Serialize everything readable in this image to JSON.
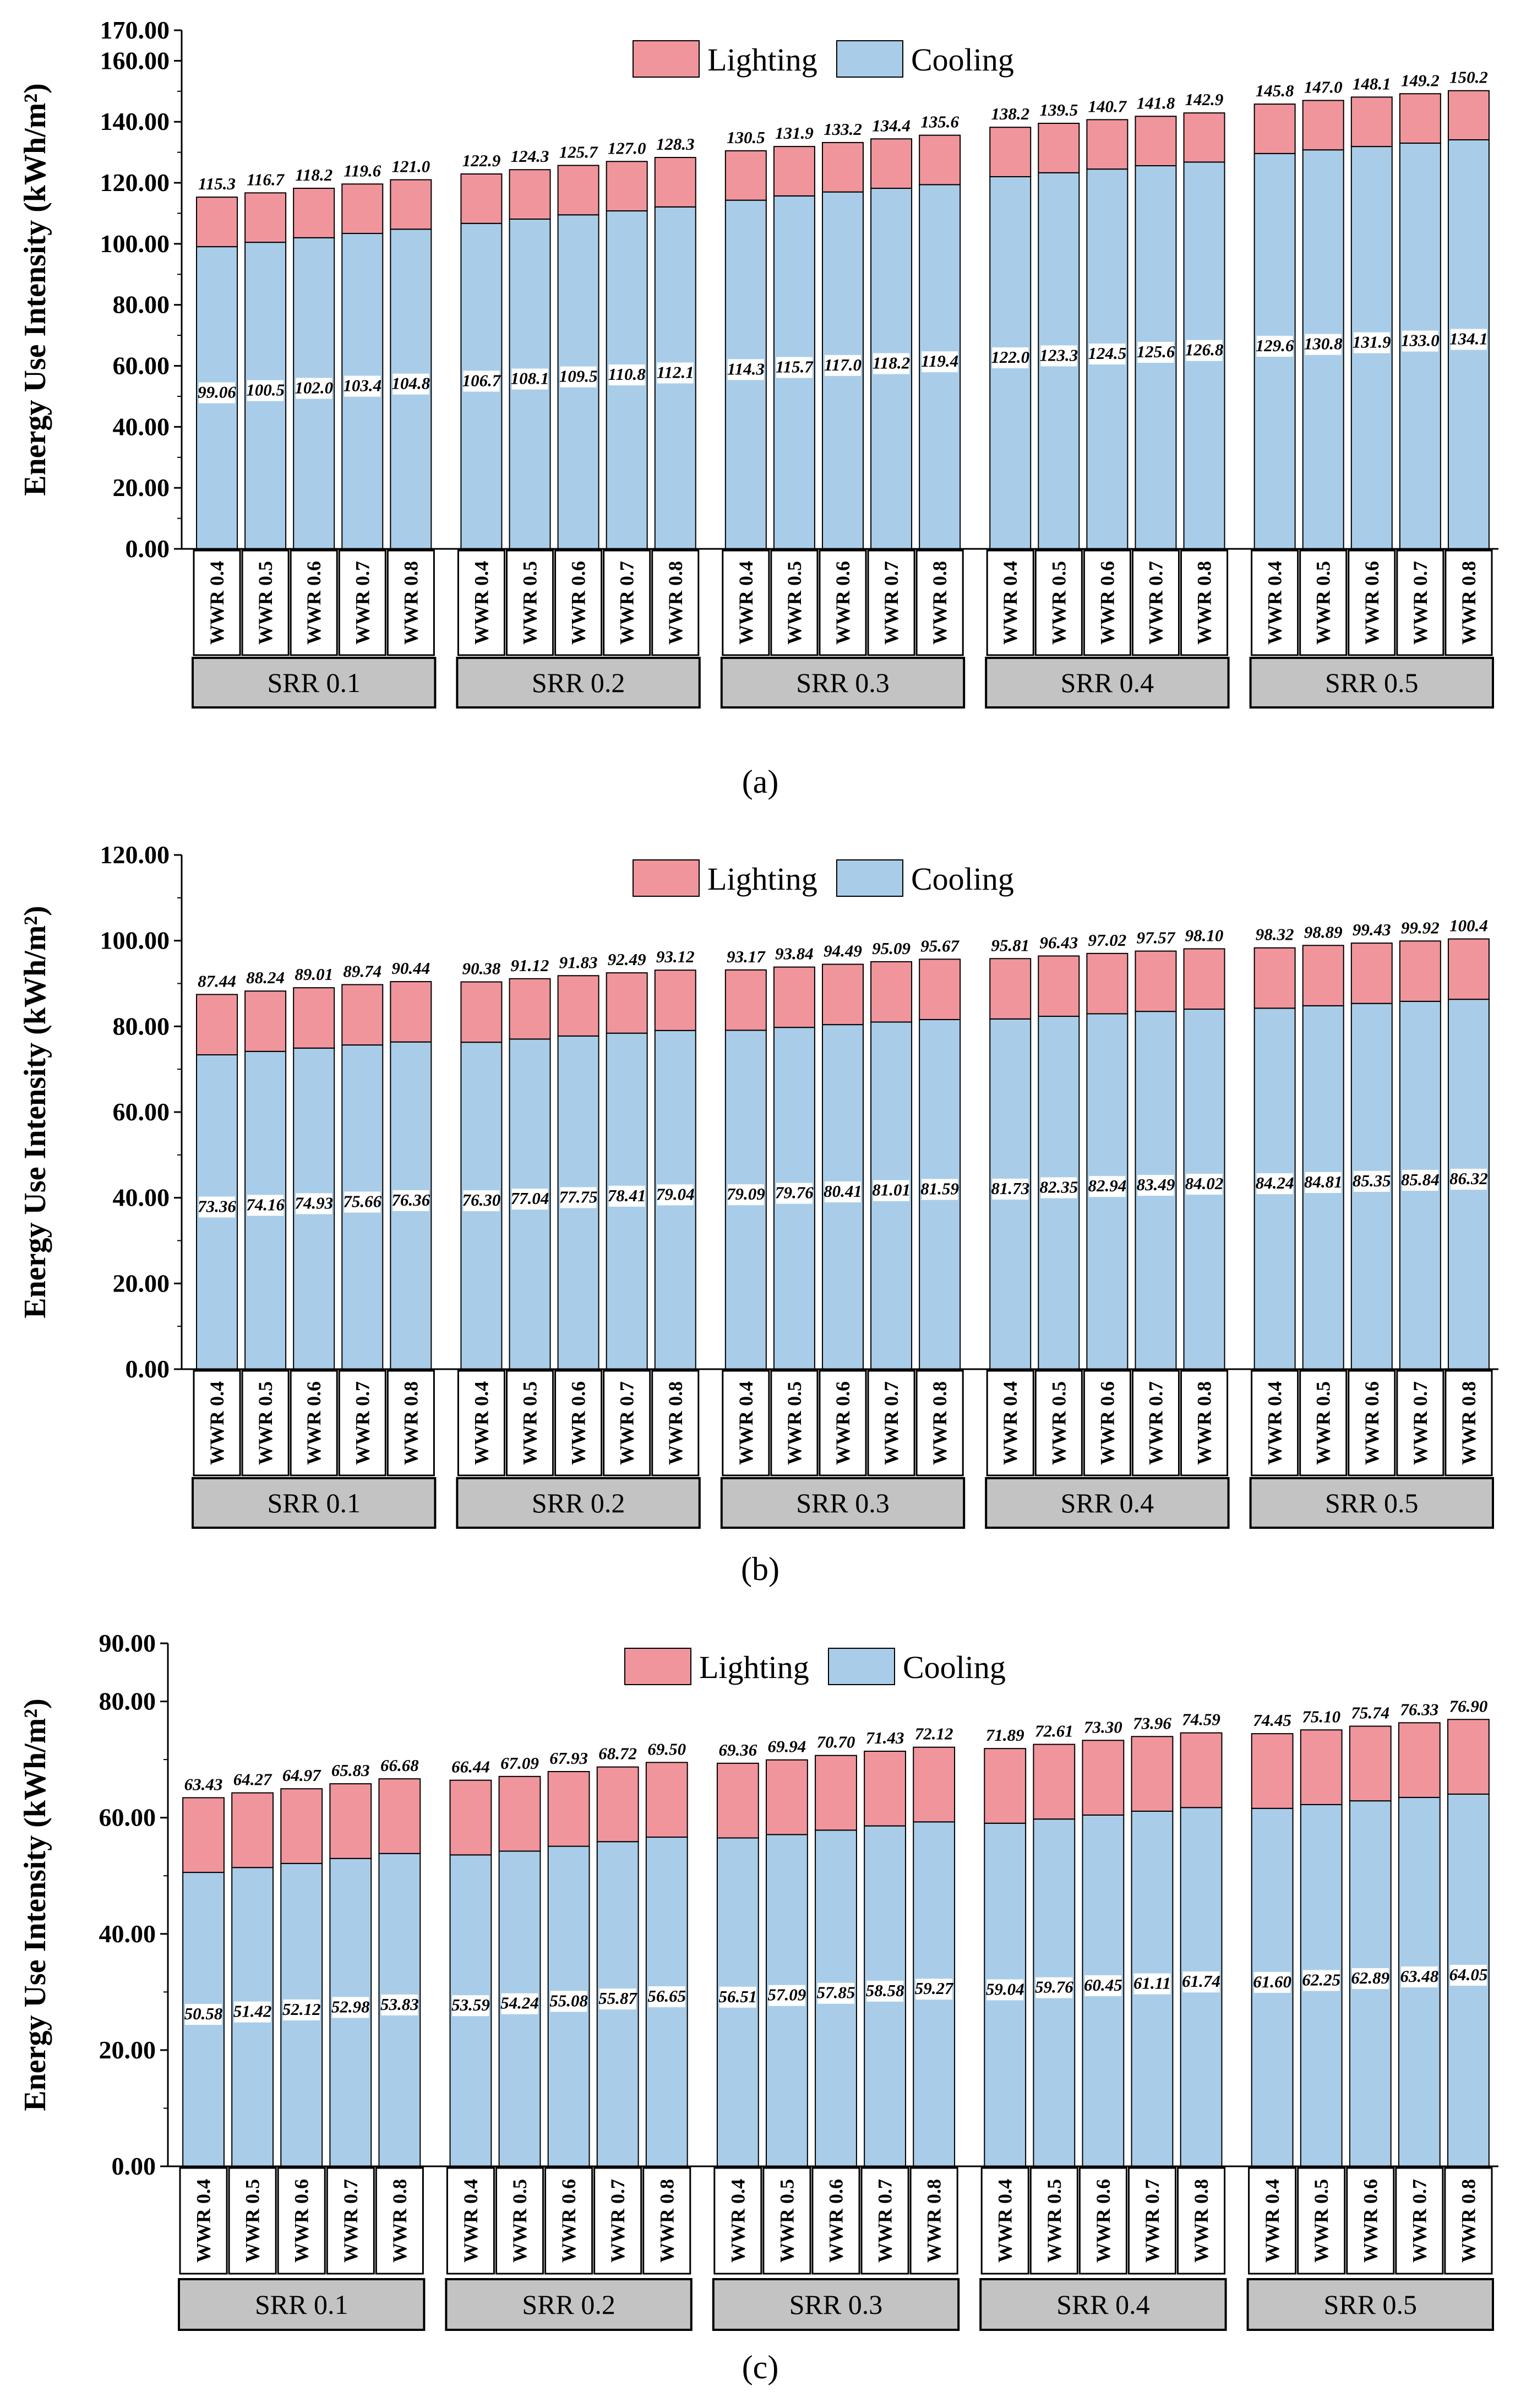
{
  "colors": {
    "lighting": "#F1959C",
    "cooling": "#A9CDE9",
    "group_box": "#C3C3C3"
  },
  "chart_data": [
    {
      "type": "bar",
      "stacked": true,
      "panel_label": "(a)",
      "ylabel": "Energy Use Intensity (kWh/m²)",
      "ylim": [
        0,
        170
      ],
      "yticks": [
        0,
        20,
        40,
        60,
        80,
        100,
        120,
        140,
        160,
        170
      ],
      "ytick_labels": [
        "0.00",
        "20.00",
        "40.00",
        "60.00",
        "80.00",
        "100.00",
        "120.00",
        "140.00",
        "160.00",
        "170.00"
      ],
      "legend": [
        "Lighting",
        "Cooling"
      ],
      "categories": [
        "WWR 0.4",
        "WWR 0.5",
        "WWR 0.6",
        "WWR 0.7",
        "WWR 0.8"
      ],
      "groups": [
        "SRR 0.1",
        "SRR 0.2",
        "SRR 0.3",
        "SRR 0.4",
        "SRR 0.5"
      ],
      "cooling": [
        99.06,
        100.5,
        102.0,
        103.4,
        104.8,
        106.7,
        108.1,
        109.5,
        110.8,
        112.1,
        114.3,
        115.7,
        117.0,
        118.2,
        119.4,
        122.0,
        123.3,
        124.5,
        125.6,
        126.8,
        129.6,
        130.8,
        131.9,
        133.0,
        134.1
      ],
      "cooling_labels": [
        "99.06",
        "100.5",
        "102.0",
        "103.4",
        "104.8",
        "106.7",
        "108.1",
        "109.5",
        "110.8",
        "112.1",
        "114.3",
        "115.7",
        "117.0",
        "118.2",
        "119.4",
        "122.0",
        "123.3",
        "124.5",
        "125.6",
        "126.8",
        "129.6",
        "130.8",
        "131.9",
        "133.0",
        "134.1"
      ],
      "total": [
        115.3,
        116.7,
        118.2,
        119.6,
        121.0,
        122.9,
        124.3,
        125.7,
        127.0,
        128.3,
        130.5,
        131.9,
        133.2,
        134.4,
        135.6,
        138.2,
        139.5,
        140.7,
        141.8,
        142.9,
        145.8,
        147.0,
        148.1,
        149.2,
        150.2
      ],
      "total_labels": [
        "115.3",
        "116.7",
        "118.2",
        "119.6",
        "121.0",
        "122.9",
        "124.3",
        "125.7",
        "127.0",
        "128.3",
        "130.5",
        "131.9",
        "133.2",
        "134.4",
        "135.6",
        "138.2",
        "139.5",
        "140.7",
        "141.8",
        "142.9",
        "145.8",
        "147.0",
        "148.1",
        "149.2",
        "150.2"
      ]
    },
    {
      "type": "bar",
      "stacked": true,
      "panel_label": "(b)",
      "ylabel": "Energy Use Intensity (kWh/m²)",
      "ylim": [
        0,
        120
      ],
      "yticks": [
        0,
        20,
        40,
        60,
        80,
        100,
        120
      ],
      "ytick_labels": [
        "0.00",
        "20.00",
        "40.00",
        "60.00",
        "80.00",
        "100.00",
        "120.00"
      ],
      "legend": [
        "Lighting",
        "Cooling"
      ],
      "categories": [
        "WWR 0.4",
        "WWR 0.5",
        "WWR 0.6",
        "WWR 0.7",
        "WWR 0.8"
      ],
      "groups": [
        "SRR 0.1",
        "SRR 0.2",
        "SRR 0.3",
        "SRR 0.4",
        "SRR 0.5"
      ],
      "cooling": [
        73.36,
        74.16,
        74.93,
        75.66,
        76.36,
        76.3,
        77.04,
        77.75,
        78.41,
        79.04,
        79.09,
        79.76,
        80.41,
        81.01,
        81.59,
        81.73,
        82.35,
        82.94,
        83.49,
        84.02,
        84.24,
        84.81,
        85.35,
        85.84,
        86.32
      ],
      "cooling_labels": [
        "73.36",
        "74.16",
        "74.93",
        "75.66",
        "76.36",
        "76.30",
        "77.04",
        "77.75",
        "78.41",
        "79.04",
        "79.09",
        "79.76",
        "80.41",
        "81.01",
        "81.59",
        "81.73",
        "82.35",
        "82.94",
        "83.49",
        "84.02",
        "84.24",
        "84.81",
        "85.35",
        "85.84",
        "86.32"
      ],
      "total": [
        87.44,
        88.24,
        89.01,
        89.74,
        90.44,
        90.38,
        91.12,
        91.83,
        92.49,
        93.12,
        93.17,
        93.84,
        94.49,
        95.09,
        95.67,
        95.81,
        96.43,
        97.02,
        97.57,
        98.1,
        98.32,
        98.89,
        99.43,
        99.92,
        100.4
      ],
      "total_labels": [
        "87.44",
        "88.24",
        "89.01",
        "89.74",
        "90.44",
        "90.38",
        "91.12",
        "91.83",
        "92.49",
        "93.12",
        "93.17",
        "93.84",
        "94.49",
        "95.09",
        "95.67",
        "95.81",
        "96.43",
        "97.02",
        "97.57",
        "98.10",
        "98.32",
        "98.89",
        "99.43",
        "99.92",
        "100.4"
      ]
    },
    {
      "type": "bar",
      "stacked": true,
      "panel_label": "(c)",
      "ylabel": "Energy Use Intensity (kWh/m²)",
      "ylim": [
        0,
        90
      ],
      "yticks": [
        0,
        20,
        40,
        60,
        80,
        90
      ],
      "ytick_labels": [
        "0.00",
        "20.00",
        "40.00",
        "60.00",
        "80.00",
        "90.00"
      ],
      "legend": [
        "Lighting",
        "Cooling"
      ],
      "categories": [
        "WWR 0.4",
        "WWR 0.5",
        "WWR 0.6",
        "WWR 0.7",
        "WWR 0.8"
      ],
      "groups": [
        "SRR 0.1",
        "SRR 0.2",
        "SRR 0.3",
        "SRR 0.4",
        "SRR 0.5"
      ],
      "cooling": [
        50.58,
        51.42,
        52.12,
        52.98,
        53.83,
        53.59,
        54.24,
        55.08,
        55.87,
        56.65,
        56.51,
        57.09,
        57.85,
        58.58,
        59.27,
        59.04,
        59.76,
        60.45,
        61.11,
        61.74,
        61.6,
        62.25,
        62.89,
        63.48,
        64.05
      ],
      "cooling_labels": [
        "50.58",
        "51.42",
        "52.12",
        "52.98",
        "53.83",
        "53.59",
        "54.24",
        "55.08",
        "55.87",
        "56.65",
        "56.51",
        "57.09",
        "57.85",
        "58.58",
        "59.27",
        "59.04",
        "59.76",
        "60.45",
        "61.11",
        "61.74",
        "61.60",
        "62.25",
        "62.89",
        "63.48",
        "64.05"
      ],
      "total": [
        63.43,
        64.27,
        64.97,
        65.83,
        66.68,
        66.44,
        67.09,
        67.93,
        68.72,
        69.5,
        69.36,
        69.94,
        70.7,
        71.43,
        72.12,
        71.89,
        72.61,
        73.3,
        73.96,
        74.59,
        74.45,
        75.1,
        75.74,
        76.33,
        76.9
      ],
      "total_labels": [
        "63.43",
        "64.27",
        "64.97",
        "65.83",
        "66.68",
        "66.44",
        "67.09",
        "67.93",
        "68.72",
        "69.50",
        "69.36",
        "69.94",
        "70.70",
        "71.43",
        "72.12",
        "71.89",
        "72.61",
        "73.30",
        "73.96",
        "74.59",
        "74.45",
        "75.10",
        "75.74",
        "76.33",
        "76.90"
      ]
    }
  ]
}
